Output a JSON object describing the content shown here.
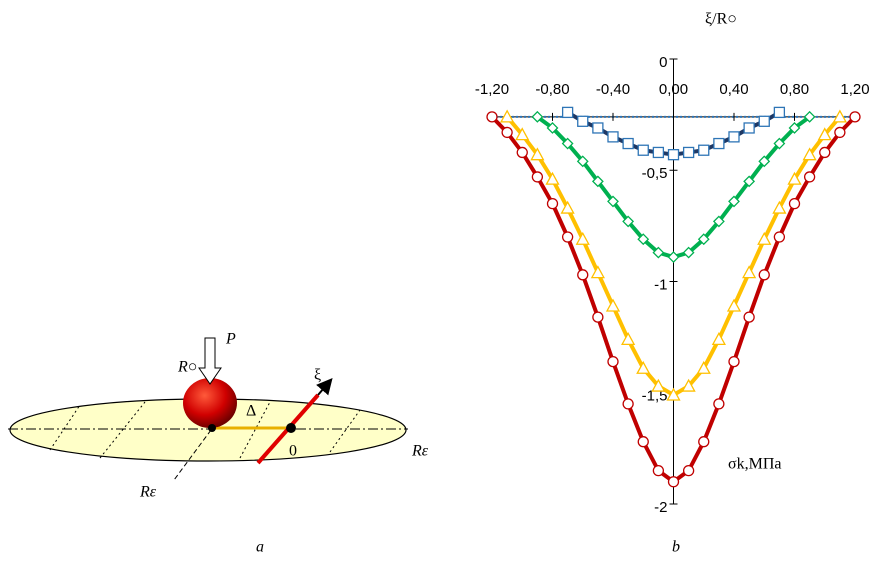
{
  "diagram": {
    "force_label": "P",
    "ball_label": "R○",
    "axis_label": "ξ",
    "offset_label": "Δ",
    "origin_label": "0",
    "radius_right_label": "Rε",
    "radius_front_label": "Rε",
    "panel_label": "a"
  },
  "chart_data": {
    "type": "line",
    "panel_label": "b",
    "x_label": "ξ/R○",
    "y_label": "σk,МПа",
    "xlim": [
      -1.2,
      1.2
    ],
    "xticks": [
      {
        "value": -1.2,
        "label": "-1,20"
      },
      {
        "value": -0.8,
        "label": "-0,80"
      },
      {
        "value": -0.4,
        "label": "-0,40"
      },
      {
        "value": 0,
        "label": "0,00"
      },
      {
        "value": 0.4,
        "label": "0,40"
      },
      {
        "value": 0.8,
        "label": "0,80"
      },
      {
        "value": 1.2,
        "label": "1,20"
      }
    ],
    "ylim": [
      -2,
      0
    ],
    "yticks": [
      0,
      {
        "value": -0.5,
        "label": "-0,5"
      },
      -1,
      {
        "value": -1.5,
        "label": "-1,5"
      },
      -2
    ],
    "x_axis_crosses": -0.26,
    "series": [
      {
        "color": "#c00000",
        "marker": "circle",
        "x": [
          -1.2,
          -1.1,
          -1.0,
          -0.9,
          -0.8,
          -0.7,
          -0.6,
          -0.5,
          -0.4,
          -0.3,
          -0.2,
          -0.1,
          0,
          0.1,
          0.2,
          0.3,
          0.4,
          0.5,
          0.6,
          0.7,
          0.8,
          0.9,
          1.0,
          1.1,
          1.2
        ],
        "values": [
          -0.26,
          -0.33,
          -0.42,
          -0.53,
          -0.65,
          -0.8,
          -0.97,
          -1.16,
          -1.36,
          -1.55,
          -1.72,
          -1.85,
          -1.9,
          -1.85,
          -1.72,
          -1.55,
          -1.36,
          -1.16,
          -0.97,
          -0.8,
          -0.65,
          -0.53,
          -0.42,
          -0.33,
          -0.26
        ]
      },
      {
        "color": "#ffc000",
        "marker": "triangle",
        "x": [
          -1.1,
          -1.0,
          -0.9,
          -0.8,
          -0.7,
          -0.6,
          -0.5,
          -0.4,
          -0.3,
          -0.2,
          -0.1,
          0,
          0.1,
          0.2,
          0.3,
          0.4,
          0.5,
          0.6,
          0.7,
          0.8,
          0.9,
          1.0,
          1.1
        ],
        "values": [
          -0.26,
          -0.34,
          -0.43,
          -0.54,
          -0.67,
          -0.81,
          -0.96,
          -1.11,
          -1.26,
          -1.39,
          -1.47,
          -1.51,
          -1.47,
          -1.39,
          -1.26,
          -1.11,
          -0.96,
          -0.81,
          -0.67,
          -0.54,
          -0.43,
          -0.34,
          -0.26
        ]
      },
      {
        "color": "#00b050",
        "marker": "diamond",
        "x": [
          -0.9,
          -0.8,
          -0.7,
          -0.6,
          -0.5,
          -0.4,
          -0.3,
          -0.2,
          -0.1,
          0,
          0.1,
          0.2,
          0.3,
          0.4,
          0.5,
          0.6,
          0.7,
          0.8,
          0.9
        ],
        "values": [
          -0.26,
          -0.31,
          -0.38,
          -0.46,
          -0.55,
          -0.64,
          -0.73,
          -0.81,
          -0.87,
          -0.89,
          -0.87,
          -0.81,
          -0.73,
          -0.64,
          -0.55,
          -0.46,
          -0.38,
          -0.31,
          -0.26
        ]
      },
      {
        "color": "#2e75b6",
        "line_color": "#1f3864",
        "marker": "square",
        "x": [
          -0.7,
          -0.6,
          -0.5,
          -0.4,
          -0.3,
          -0.2,
          -0.1,
          0,
          0.1,
          0.2,
          0.3,
          0.4,
          0.5,
          0.6,
          0.7
        ],
        "values": [
          -0.24,
          -0.28,
          -0.31,
          -0.35,
          -0.38,
          -0.41,
          -0.42,
          -0.43,
          -0.42,
          -0.41,
          -0.38,
          -0.35,
          -0.31,
          -0.28,
          -0.24
        ]
      }
    ]
  }
}
